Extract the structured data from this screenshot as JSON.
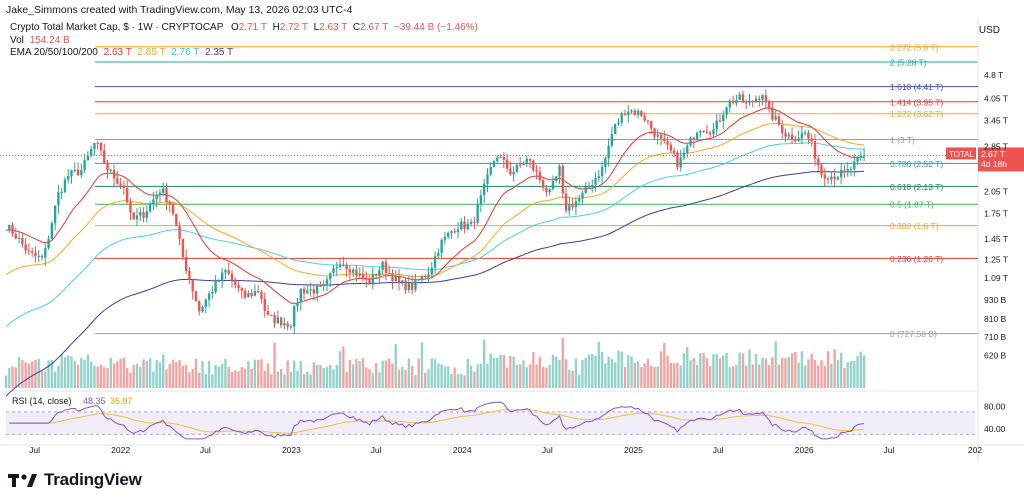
{
  "credit": "Jake_Simmons created with TradingView.com, May 13, 2026 02:03 UTC-4",
  "legend": {
    "title_line": "Crypto Total Market Cap, $ · 1W · CRYPTOCAP",
    "ohlc": {
      "o_label": "O",
      "o": "2.71 T",
      "h_label": "H",
      "h": "2.72 T",
      "l_label": "L",
      "l": "2.63 T",
      "c_label": "C",
      "c": "2.67 T",
      "change": "−39.44 B (−1.46%)"
    },
    "vol_label": "Vol",
    "vol_value": "154.24 B",
    "ema_label": "EMA 20/50/100/200",
    "ema_values": [
      "2.63 T",
      "2.85 T",
      "2.76 T",
      "2.35 T"
    ]
  },
  "currency": "USD",
  "brand": "TradingView",
  "colors": {
    "up": "#26a69a",
    "down": "#ef5350",
    "ema20": "#e53935",
    "ema50": "#ffa726",
    "ema100": "#4dd0e1",
    "ema200": "#3f3d99",
    "vol_up": "#8fd3cb",
    "vol_down": "#f5a3a1",
    "rsi": "#7e57c2",
    "rsi_ma": "#f0c040"
  },
  "price_axis_labels": [
    "4.8 T",
    "4.05 T",
    "3.45 T",
    "2.85 T",
    "2.05 T",
    "1.75 T",
    "1.45 T",
    "1.25 T",
    "1.09 T",
    "930 B",
    "810 B",
    "710 B",
    "620 B"
  ],
  "rsi_axis_labels": [
    "80.00",
    "40.00"
  ],
  "time_labels": [
    "Jul",
    "2022",
    "Jul",
    "2023",
    "Jul",
    "2024",
    "Jul",
    "2025",
    "Jul",
    "2026",
    "Jul",
    "202"
  ],
  "price_tag": {
    "symbol": "TOTAL",
    "value": "2.67 T",
    "countdown": "4d 18h"
  },
  "rsi_legend": {
    "label": "RSI (14, close)",
    "value1": "48.35",
    "value2": "36.97"
  },
  "chart_data": {
    "type": "candlestick",
    "title": "Crypto Total Market Cap, $ · 1W · CRYPTOCAP",
    "y_scale": "log",
    "ylim": [
      0.5,
      6.2
    ],
    "y_unit": "T",
    "x_range": [
      "2021-05",
      "2027-01"
    ],
    "fib_levels": [
      {
        "label": "2.272 (5.9 T)",
        "ratio": 2.272,
        "value": 5.9,
        "color": "#f5a623"
      },
      {
        "label": "2 (5.28 T)",
        "ratio": 2,
        "value": 5.28,
        "color": "#26a69a"
      },
      {
        "label": "1.618 (4.41 T)",
        "ratio": 1.618,
        "value": 4.41,
        "color": "#3f51b5"
      },
      {
        "label": "1.414 (3.95 T)",
        "ratio": 1.414,
        "value": 3.95,
        "color": "#e53935"
      },
      {
        "label": "1.272 (3.62 T)",
        "ratio": 1.272,
        "value": 3.62,
        "color": "#f5a623"
      },
      {
        "label": "1 (3 T)",
        "ratio": 1,
        "value": 3.0,
        "color": "#9e9e9e"
      },
      {
        "label": "0.786 (2.52 T)",
        "ratio": 0.786,
        "value": 2.52,
        "color": "#26a69a"
      },
      {
        "label": "0.618 (2.13 T)",
        "ratio": 0.618,
        "value": 2.13,
        "color": "#1b8a5a"
      },
      {
        "label": "0.5 (1.87 T)",
        "ratio": 0.5,
        "value": 1.87,
        "color": "#4caf50"
      },
      {
        "label": "0.382 (1.6 T)",
        "ratio": 0.382,
        "value": 1.6,
        "color": "#f5a623"
      },
      {
        "label": "0.236 (1.26 T)",
        "ratio": 0.236,
        "value": 1.26,
        "color": "#e53935"
      },
      {
        "label": "0 (727.58 B)",
        "ratio": 0,
        "value": 0.7276,
        "color": "#9e9e9e"
      }
    ],
    "price_anchors": [
      [
        "2021-05-01",
        1.6
      ],
      [
        "2021-05-20",
        1.5
      ],
      [
        "2021-06-20",
        1.3
      ],
      [
        "2021-07-20",
        1.25
      ],
      [
        "2021-08-20",
        2.0
      ],
      [
        "2021-09-10",
        2.3
      ],
      [
        "2021-10-10",
        2.4
      ],
      [
        "2021-11-08",
        2.95
      ],
      [
        "2021-12-05",
        2.4
      ],
      [
        "2022-01-10",
        2.1
      ],
      [
        "2022-01-24",
        1.65
      ],
      [
        "2022-02-20",
        1.75
      ],
      [
        "2022-03-28",
        2.1
      ],
      [
        "2022-04-20",
        1.85
      ],
      [
        "2022-05-12",
        1.3
      ],
      [
        "2022-06-18",
        0.86
      ],
      [
        "2022-07-15",
        1.0
      ],
      [
        "2022-08-14",
        1.15
      ],
      [
        "2022-09-20",
        0.95
      ],
      [
        "2022-10-25",
        1.0
      ],
      [
        "2022-11-09",
        0.82
      ],
      [
        "2022-12-30",
        0.78
      ],
      [
        "2023-01-20",
        1.0
      ],
      [
        "2023-03-10",
        1.0
      ],
      [
        "2023-04-14",
        1.25
      ],
      [
        "2023-06-15",
        1.05
      ],
      [
        "2023-07-14",
        1.2
      ],
      [
        "2023-08-18",
        1.05
      ],
      [
        "2023-09-15",
        1.02
      ],
      [
        "2023-10-23",
        1.15
      ],
      [
        "2023-11-15",
        1.4
      ],
      [
        "2023-12-20",
        1.6
      ],
      [
        "2024-01-22",
        1.6
      ],
      [
        "2024-02-26",
        2.3
      ],
      [
        "2024-03-14",
        2.7
      ],
      [
        "2024-04-15",
        2.35
      ],
      [
        "2024-05-20",
        2.6
      ],
      [
        "2024-07-05",
        2.0
      ],
      [
        "2024-07-29",
        2.45
      ],
      [
        "2024-08-05",
        1.8
      ],
      [
        "2024-09-09",
        1.95
      ],
      [
        "2024-10-28",
        2.45
      ],
      [
        "2024-11-18",
        3.2
      ],
      [
        "2024-12-16",
        3.75
      ],
      [
        "2025-01-20",
        3.6
      ],
      [
        "2025-02-25",
        3.0
      ],
      [
        "2025-03-25",
        2.7
      ],
      [
        "2025-04-07",
        2.5
      ],
      [
        "2025-05-20",
        3.3
      ],
      [
        "2025-06-22",
        3.2
      ],
      [
        "2025-07-20",
        3.9
      ],
      [
        "2025-08-14",
        4.05
      ],
      [
        "2025-09-01",
        3.85
      ],
      [
        "2025-10-06",
        4.25
      ],
      [
        "2025-10-13",
        3.75
      ],
      [
        "2025-11-04",
        3.4
      ],
      [
        "2025-11-24",
        3.1
      ],
      [
        "2025-12-15",
        3.05
      ],
      [
        "2026-01-05",
        3.15
      ],
      [
        "2026-01-20",
        2.8
      ],
      [
        "2026-02-06",
        2.35
      ],
      [
        "2026-03-01",
        2.3
      ],
      [
        "2026-04-01",
        2.35
      ],
      [
        "2026-04-25",
        2.55
      ],
      [
        "2026-05-11",
        2.67
      ]
    ],
    "volume_ylim": [
      0,
      1
    ],
    "rsi": {
      "period": 14,
      "last": 48.35,
      "ma_last": 36.97,
      "ylim": [
        20,
        100
      ],
      "bands": [
        70,
        30
      ]
    }
  }
}
